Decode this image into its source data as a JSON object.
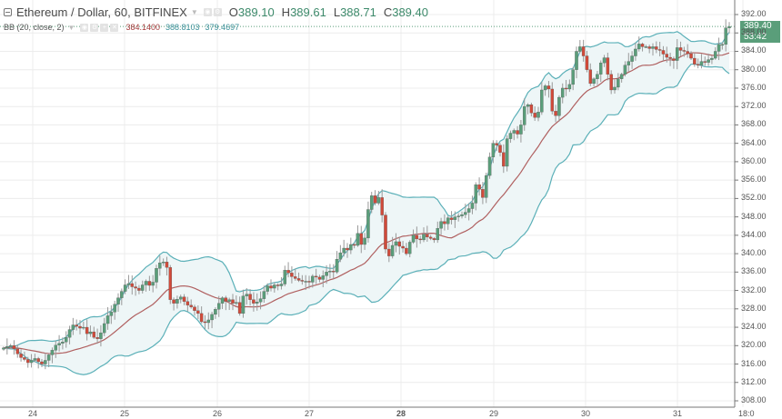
{
  "header": {
    "symbol_title": "Ethereum / Dollar, 60, BITFINEX",
    "ohlc": [
      {
        "label": "O",
        "value": "389.10"
      },
      {
        "label": "H",
        "value": "389.61"
      },
      {
        "label": "L",
        "value": "388.71"
      },
      {
        "label": "C",
        "value": "389.40"
      }
    ]
  },
  "indicator": {
    "name": "BB (20, close, 2)",
    "values": [
      "384.1400",
      "388.8103",
      "379.4697"
    ],
    "value_colors": [
      "#a33a3a",
      "#3a8f98",
      "#3a8f98"
    ]
  },
  "price_tags": {
    "last_price": "389.40",
    "countdown": "53:42"
  },
  "colors": {
    "up": "#5a9e7a",
    "down": "#d14a3a",
    "band": "#5bb0b8",
    "basis": "#b06060",
    "band_fill": "#eef6f7",
    "grid": "#ececec",
    "axis": "#777777"
  },
  "chart_data": {
    "type": "candlestick",
    "title": "Ethereum / Dollar, 60, BITFINEX",
    "xlabel": "",
    "ylabel": "",
    "y_ticks": [
      "392.00",
      "388.00",
      "384.00",
      "380.00",
      "376.00",
      "372.00",
      "368.00",
      "364.00",
      "360.00",
      "356.00",
      "352.00",
      "348.00",
      "344.00",
      "340.00",
      "336.00",
      "332.00",
      "328.00",
      "324.00",
      "320.00",
      "316.00",
      "312.00",
      "308.00"
    ],
    "x_ticks": [
      "24",
      "25",
      "26",
      "27",
      "28",
      "29",
      "30",
      "31",
      "18:0"
    ],
    "ylim": [
      308,
      392
    ],
    "grid": true,
    "indicator": "Bollinger Bands (20, close, 2)",
    "bb_last": {
      "basis": 384.14,
      "upper": 388.8103,
      "lower": 379.4697
    },
    "last_ohlc": {
      "open": 389.1,
      "high": 389.61,
      "low": 388.71,
      "close": 389.4
    },
    "daily_closes_approx": [
      {
        "day": "23",
        "close": 319.0
      },
      {
        "day": "24",
        "close": 318.5
      },
      {
        "day": "25",
        "close": 334.0
      },
      {
        "day": "26",
        "close": 327.0
      },
      {
        "day": "27",
        "close": 335.0
      },
      {
        "day": "28",
        "close": 341.0
      },
      {
        "day": "29",
        "close": 352.0
      },
      {
        "day": "30",
        "close": 380.0
      },
      {
        "day": "31",
        "close": 383.0
      },
      {
        "day": "31 18:00",
        "close": 389.4
      }
    ],
    "closes": [
      319.5,
      319.8,
      320.0,
      319.3,
      318.2,
      317.4,
      317.0,
      316.3,
      316.8,
      317.2,
      316.5,
      316.0,
      316.8,
      318.0,
      319.0,
      320.1,
      320.5,
      320.8,
      321.8,
      323.5,
      324.5,
      324.2,
      323.8,
      324.0,
      322.6,
      323.0,
      321.8,
      321.5,
      322.8,
      324.8,
      326.5,
      327.3,
      329.0,
      330.4,
      331.8,
      333.2,
      333.5,
      332.8,
      332.5,
      332.0,
      333.2,
      334.0,
      333.1,
      333.8,
      336.8,
      338.0,
      338.2,
      337.0,
      330.0,
      329.2,
      330.1,
      330.6,
      329.6,
      328.8,
      328.4,
      327.6,
      327.0,
      325.2,
      325.0,
      325.6,
      326.8,
      327.9,
      329.2,
      330.4,
      329.6,
      330.0,
      329.2,
      329.4,
      327.0,
      330.8,
      331.2,
      330.0,
      329.2,
      329.5,
      330.2,
      331.8,
      333.0,
      332.5,
      333.2,
      333.0,
      333.4,
      336.4,
      335.8,
      335.0,
      334.6,
      334.2,
      334.0,
      334.0,
      333.8,
      335.1,
      334.9,
      334.4,
      335.2,
      336.0,
      336.2,
      336.0,
      338.8,
      340.2,
      341.2,
      340.8,
      342.0,
      341.8,
      344.4,
      342.0,
      343.4,
      349.6,
      352.6,
      351.0,
      352.2,
      348.4,
      341.0,
      339.5,
      341.8,
      342.6,
      341.6,
      341.2,
      340.0,
      342.5,
      344.0,
      343.2,
      343.0,
      344.2,
      343.6,
      343.3,
      343.0,
      345.5,
      347.0,
      346.5,
      347.8,
      347.4,
      348.0,
      348.2,
      348.5,
      349.0,
      349.8,
      351.0,
      355.0,
      354.0,
      352.2,
      357.0,
      361.0,
      364.0,
      363.6,
      362.0,
      359.0,
      365.0,
      366.2,
      366.8,
      366.0,
      368.0,
      372.0,
      372.4,
      370.6,
      369.6,
      370.8,
      375.6,
      376.5,
      375.8,
      371.0,
      370.0,
      374.0,
      376.0,
      375.8,
      376.8,
      380.0,
      384.0,
      385.0,
      383.0,
      380.0,
      377.0,
      378.0,
      379.0,
      381.5,
      382.6,
      379.0,
      375.6,
      376.2,
      378.0,
      379.0,
      381.0,
      381.8,
      383.0,
      384.5,
      385.6,
      385.0,
      385.0,
      384.6,
      385.0,
      384.4,
      384.2,
      383.4,
      382.7,
      382.4,
      382.0,
      384.8,
      384.2,
      384.0,
      383.5,
      382.5,
      381.2,
      381.0,
      381.8,
      381.6,
      382.2,
      382.5,
      384.0,
      385.5,
      385.5,
      389.1,
      389.4
    ]
  },
  "crosshair": {
    "date_hint": "cursor not shown"
  }
}
